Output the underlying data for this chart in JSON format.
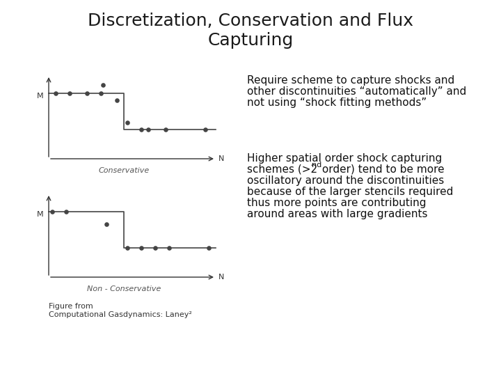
{
  "title": "Discretization, Conservation and Flux\nCapturing",
  "title_fontsize": 18,
  "title_color": "#1a1a1a",
  "bg_color": "#ffffff",
  "text1_line1": "Require scheme to capture shocks and",
  "text1_line2": "other discontinuities “automatically” and",
  "text1_line3": "not using “shock fitting methods”",
  "text2_line1": "Higher spatial order shock capturing",
  "text2_line2": "schemes (>2",
  "text2_line2b": "nd",
  "text2_line2c": " order) tend to be more",
  "text2_line3": "oscillatory around the discontinuities",
  "text2_line4": "because of the larger stencils required",
  "text2_line5": "thus more points are contributing",
  "text2_line6": "around areas with large gradients",
  "figure_caption": "Figure from\nComputational Gasdynamics: Laney²",
  "text_fontsize": 11,
  "caption_fontsize": 8,
  "conservative_label": "Conservative",
  "non_conservative_label": "Non - Conservative",
  "label_fontsize": 8,
  "m_label": "M",
  "n_label": "N"
}
